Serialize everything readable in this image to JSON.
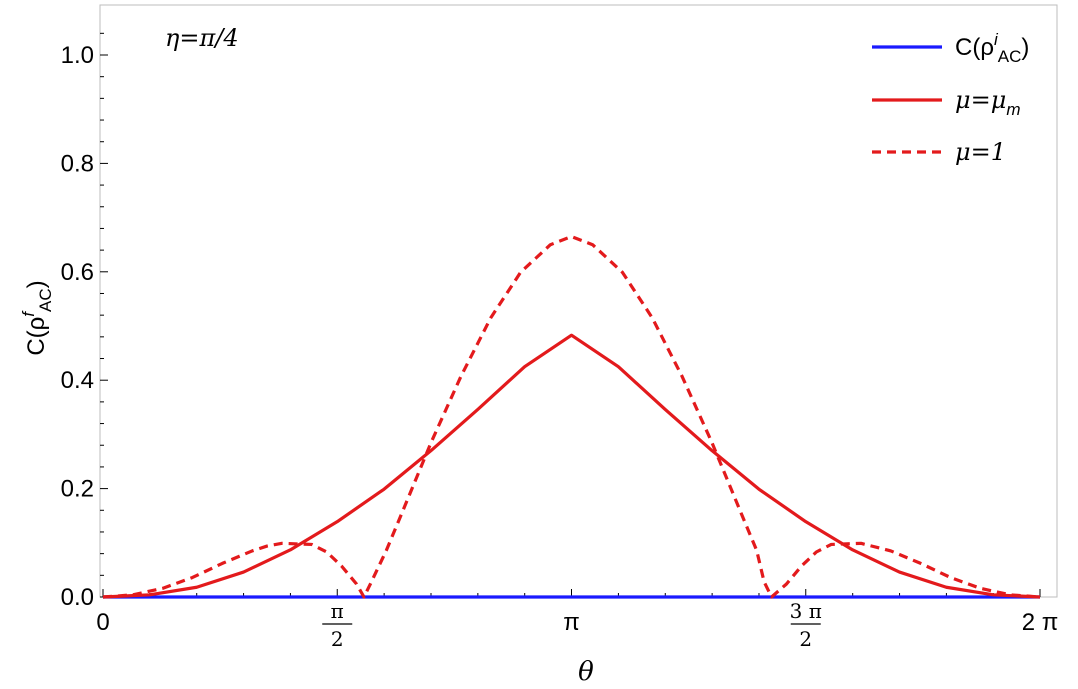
{
  "chart_data": {
    "type": "line",
    "annotation": "η=π/4",
    "xlabel": "θ",
    "ylabel": {
      "prefix": "C(ρ",
      "sup": "f",
      "sub": "AC",
      "suffix": ")"
    },
    "xlim": [
      0,
      6.2832
    ],
    "ylim": [
      0,
      1.08
    ],
    "y_ticks": [
      {
        "value": 0.0,
        "label": "0.0"
      },
      {
        "value": 0.2,
        "label": "0.2"
      },
      {
        "value": 0.4,
        "label": "0.4"
      },
      {
        "value": 0.6,
        "label": "0.6"
      },
      {
        "value": 0.8,
        "label": "0.8"
      },
      {
        "value": 1.0,
        "label": "1.0"
      }
    ],
    "x_ticks": [
      {
        "value": 0,
        "kind": "plain",
        "label": "0"
      },
      {
        "value": 1.5708,
        "kind": "frac",
        "num": "π",
        "den": "2"
      },
      {
        "value": 3.1416,
        "kind": "plain",
        "label": "π"
      },
      {
        "value": 4.7124,
        "kind": "frac",
        "num": "3 π",
        "den": "2"
      },
      {
        "value": 6.2832,
        "kind": "plain",
        "label": "2 π"
      }
    ],
    "grid": false,
    "legend_position": "top-right",
    "series": [
      {
        "legend": {
          "prefix": "C(ρ",
          "sup": "i",
          "sub": "AC",
          "suffix": ")"
        },
        "color": "#1a1aff",
        "dash": "solid",
        "x": [
          0,
          6.2832
        ],
        "y": [
          0,
          0
        ]
      },
      {
        "legend": {
          "prefix": "μ=μ",
          "sub": "m"
        },
        "color": "#e31a1c",
        "dash": "solid",
        "x": [
          0,
          0.3142,
          0.6283,
          0.9425,
          1.2566,
          1.5708,
          1.885,
          2.1991,
          2.5133,
          2.8274,
          3.1416,
          3.4558,
          3.7699,
          4.0841,
          4.3982,
          4.7124,
          5.0265,
          5.3407,
          5.6549,
          5.969,
          6.2832
        ],
        "y": [
          0,
          0.004,
          0.018,
          0.046,
          0.087,
          0.139,
          0.199,
          0.27,
          0.346,
          0.425,
          0.483,
          0.425,
          0.346,
          0.27,
          0.199,
          0.139,
          0.087,
          0.046,
          0.018,
          0.004,
          0
        ]
      },
      {
        "legend": {
          "prefix": "μ=1"
        },
        "color": "#e31a1c",
        "dash": "dashed",
        "x": [
          0,
          0.2,
          0.4,
          0.6,
          0.8,
          1.0,
          1.1,
          1.2,
          1.4,
          1.5,
          1.6,
          1.7,
          1.75,
          1.8,
          1.9,
          2.0,
          2.2,
          2.4,
          2.6,
          2.8,
          3.0,
          3.1416,
          3.2832,
          3.4832,
          3.6832,
          3.8832,
          4.0832,
          4.2832,
          4.3832,
          4.4332,
          4.4832,
          4.5832,
          4.6832,
          4.7832,
          4.8832,
          5.0832,
          5.2832,
          5.4832,
          5.6832,
          5.8832,
          6.0832,
          6.2832
        ],
        "y": [
          0,
          0.004,
          0.016,
          0.036,
          0.062,
          0.085,
          0.094,
          0.099,
          0.097,
          0.083,
          0.057,
          0.024,
          0.0,
          0.028,
          0.086,
          0.152,
          0.285,
          0.407,
          0.515,
          0.599,
          0.65,
          0.665,
          0.65,
          0.599,
          0.515,
          0.407,
          0.285,
          0.152,
          0.086,
          0.028,
          0.0,
          0.024,
          0.057,
          0.083,
          0.097,
          0.099,
          0.085,
          0.062,
          0.036,
          0.016,
          0.004,
          0
        ]
      }
    ]
  }
}
